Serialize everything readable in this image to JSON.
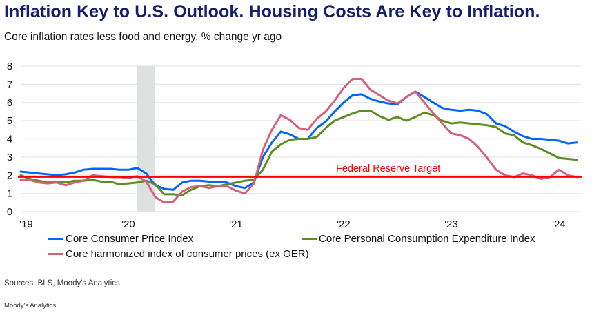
{
  "title": "Inflation Key to U.S. Outlook. Housing Costs Are Key to Inflation.",
  "subtitle": "Core inflation rates less food and energy, % change yr ago",
  "source": "Sources: BLS, Moody's Analytics",
  "footer": "Moody's Analytics",
  "chart_data": {
    "type": "line",
    "title": "Inflation Key to U.S. Outlook. Housing Costs Are Key to Inflation.",
    "subtitle": "Core inflation rates less food and energy, % change yr ago",
    "x_start": "2019-01",
    "x_frequency": "monthly",
    "x_tick_labels": [
      "'19",
      "'20",
      "'21",
      "'22",
      "'23",
      "'24"
    ],
    "y_tick_labels": [
      "0",
      "1",
      "2",
      "3",
      "4",
      "5",
      "6",
      "7",
      "8"
    ],
    "ylim": [
      0,
      8
    ],
    "grid": "horizontal",
    "legend_placement": "bottom",
    "recession_shading": {
      "start": "2020-02",
      "end": "2020-04",
      "color": "#dfe1e1"
    },
    "reference_line": {
      "value": 1.9,
      "label": "Federal Reserve Target",
      "color": "#ff0000"
    },
    "series": [
      {
        "name": "Core Consumer Price Index",
        "color": "#0066ff",
        "values": [
          2.2,
          2.15,
          2.1,
          2.05,
          2.0,
          2.05,
          2.15,
          2.3,
          2.35,
          2.35,
          2.35,
          2.3,
          2.3,
          2.4,
          2.1,
          1.45,
          1.25,
          1.2,
          1.6,
          1.7,
          1.7,
          1.65,
          1.65,
          1.6,
          1.4,
          1.3,
          1.6,
          3.0,
          3.8,
          4.4,
          4.25,
          4.0,
          4.0,
          4.6,
          4.95,
          5.5,
          6.0,
          6.4,
          6.45,
          6.2,
          6.05,
          5.95,
          5.9,
          6.3,
          6.6,
          6.3,
          6.0,
          5.7,
          5.6,
          5.55,
          5.6,
          5.55,
          5.35,
          4.85,
          4.7,
          4.4,
          4.15,
          4.0,
          4.0,
          3.95,
          3.9,
          3.75,
          3.8
        ]
      },
      {
        "name": "Core Personal Consumption Expenditure Index",
        "color": "#5b8f22",
        "values": [
          2.0,
          1.8,
          1.7,
          1.6,
          1.65,
          1.6,
          1.7,
          1.7,
          1.75,
          1.65,
          1.65,
          1.5,
          1.55,
          1.6,
          1.7,
          1.5,
          0.95,
          0.95,
          0.9,
          1.2,
          1.4,
          1.45,
          1.4,
          1.5,
          1.6,
          1.7,
          1.75,
          2.3,
          3.3,
          3.7,
          3.95,
          4.0,
          4.0,
          4.1,
          4.6,
          5.0,
          5.2,
          5.4,
          5.55,
          5.55,
          5.25,
          5.05,
          5.2,
          5.0,
          5.2,
          5.45,
          5.3,
          5.0,
          4.85,
          4.9,
          4.85,
          4.8,
          4.75,
          4.65,
          4.3,
          4.2,
          3.8,
          3.65,
          3.45,
          3.2,
          2.95,
          2.9,
          2.85
        ]
      },
      {
        "name": "Core harmonized index of consumer prices (ex OER)",
        "color": "#d4607a",
        "values": [
          1.75,
          1.75,
          1.6,
          1.55,
          1.6,
          1.45,
          1.6,
          1.7,
          2.0,
          1.95,
          1.9,
          1.9,
          1.85,
          1.95,
          1.65,
          0.8,
          0.5,
          0.55,
          1.1,
          1.35,
          1.4,
          1.3,
          1.4,
          1.4,
          1.15,
          1.0,
          1.55,
          3.4,
          4.5,
          5.3,
          5.05,
          4.6,
          4.5,
          5.1,
          5.5,
          6.1,
          6.8,
          7.3,
          7.3,
          6.7,
          6.4,
          6.1,
          5.95,
          6.3,
          6.6,
          6.0,
          5.4,
          4.85,
          4.3,
          4.2,
          4.0,
          3.55,
          2.95,
          2.3,
          2.0,
          1.9,
          2.1,
          2.0,
          1.8,
          1.9,
          2.3,
          2.0,
          1.9
        ]
      }
    ]
  }
}
